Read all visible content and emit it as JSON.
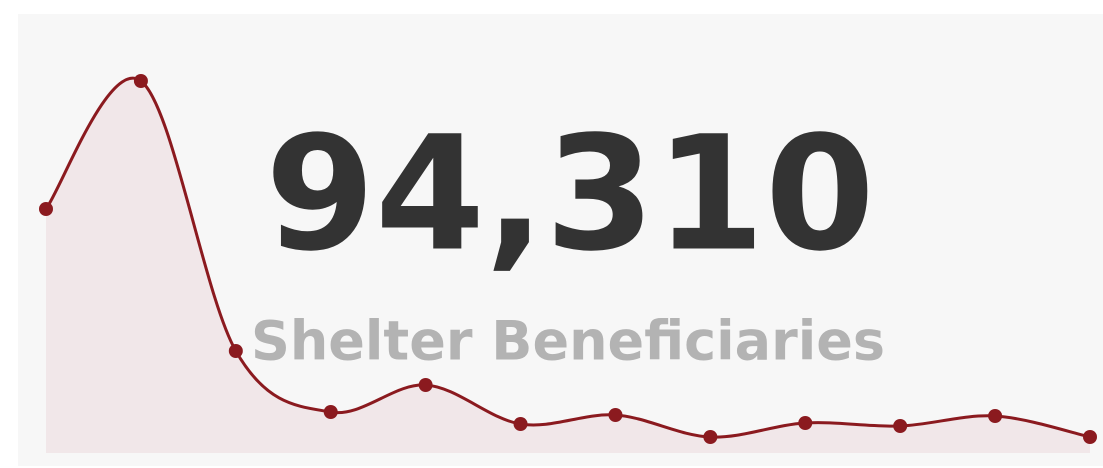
{
  "chart_data": {
    "type": "line",
    "kpi": "94,310",
    "kpi_label": "Shelter Beneficiaries",
    "categories": [
      null,
      null,
      null,
      null,
      null,
      null,
      null,
      null,
      null,
      null,
      null,
      null
    ],
    "values": [
      244,
      372,
      102,
      41,
      68,
      29,
      38,
      16,
      30,
      27,
      37,
      16
    ],
    "color": "#8b1a1f",
    "area_color": "#f1e7e9",
    "ylim": [
      0,
      400
    ]
  }
}
